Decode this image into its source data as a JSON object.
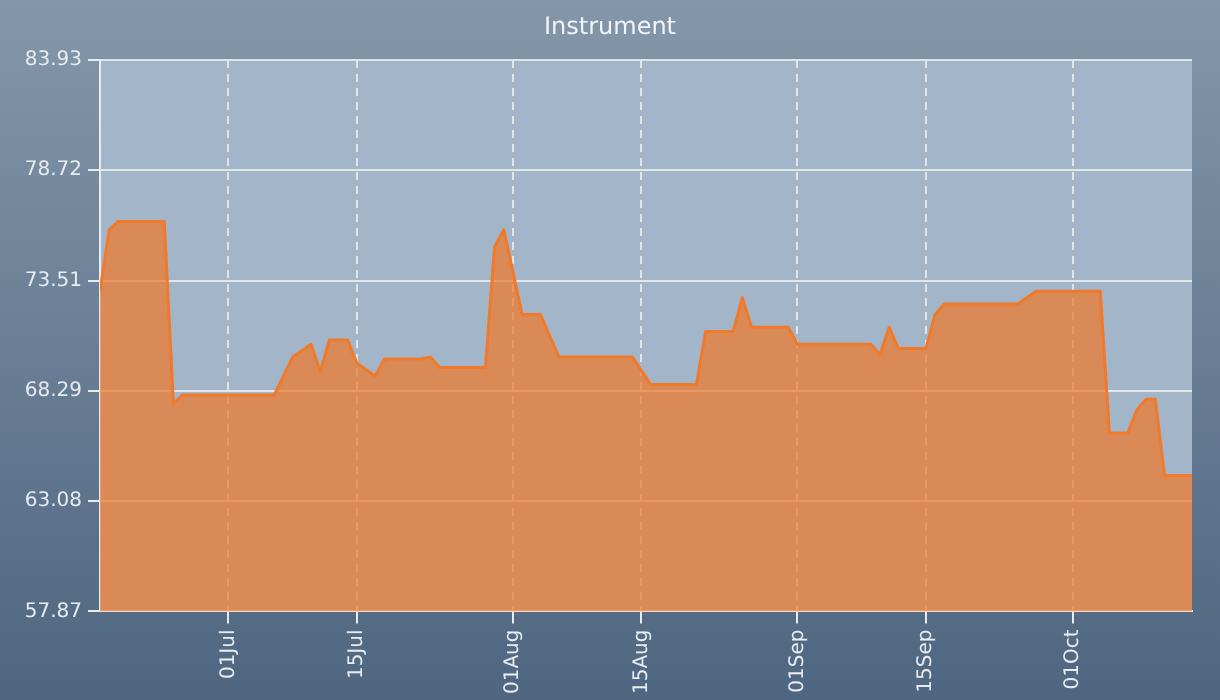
{
  "chart_data": {
    "type": "area",
    "title": "Instrument",
    "x": [
      "--06-17",
      "--06-18",
      "--06-19",
      "--06-24",
      "--06-25",
      "--06-26",
      "--07-06",
      "--07-08",
      "--07-10",
      "--07-11",
      "--07-12",
      "--07-14",
      "--07-15",
      "--07-17",
      "--07-18",
      "--07-22",
      "--07-23",
      "--07-24",
      "--07-29",
      "--07-30",
      "--07-31",
      "--08-02",
      "--08-04",
      "--08-06",
      "--08-14",
      "--08-16",
      "--08-21",
      "--08-22",
      "--08-25",
      "--08-26",
      "--08-27",
      "--08-31",
      "--09-01",
      "--09-09",
      "--09-10",
      "--09-11",
      "--09-12",
      "--09-15",
      "--09-16",
      "--09-17",
      "--09-25",
      "--09-27",
      "--10-04",
      "--10-05",
      "--10-07",
      "--10-08",
      "--10-09",
      "--10-10",
      "--10-11",
      "--10-14"
    ],
    "series": [
      {
        "color": "#f07a2a",
        "values": [
          73.0,
          75.9,
          76.3,
          76.3,
          67.7,
          68.1,
          68.1,
          69.9,
          70.5,
          69.2,
          70.7,
          70.7,
          69.6,
          69.0,
          69.8,
          69.8,
          69.9,
          69.4,
          69.4,
          75.1,
          75.9,
          71.9,
          71.9,
          69.9,
          69.9,
          68.6,
          68.6,
          71.1,
          71.1,
          72.7,
          71.3,
          71.3,
          70.5,
          70.5,
          70.0,
          71.3,
          70.3,
          70.3,
          71.9,
          72.4,
          72.4,
          73.0,
          73.0,
          66.3,
          66.3,
          67.4,
          67.9,
          67.9,
          64.3,
          64.3
        ]
      }
    ],
    "xlim": [
      "--06-17",
      "--10-14"
    ],
    "xticks": [
      {
        "value": "--07-01",
        "label": "01Jul"
      },
      {
        "value": "--07-15",
        "label": "15Jul"
      },
      {
        "value": "--08-01",
        "label": "01Aug"
      },
      {
        "value": "--08-15",
        "label": "15Aug"
      },
      {
        "value": "--09-01",
        "label": "01Sep"
      },
      {
        "value": "--09-15",
        "label": "15Sep"
      },
      {
        "value": "--10-01",
        "label": "01Oct"
      }
    ],
    "ylim": [
      57.87,
      83.93
    ],
    "yticks": [
      57.87,
      63.08,
      68.29,
      73.51,
      78.72,
      83.93
    ],
    "grid": true,
    "legend": false
  }
}
